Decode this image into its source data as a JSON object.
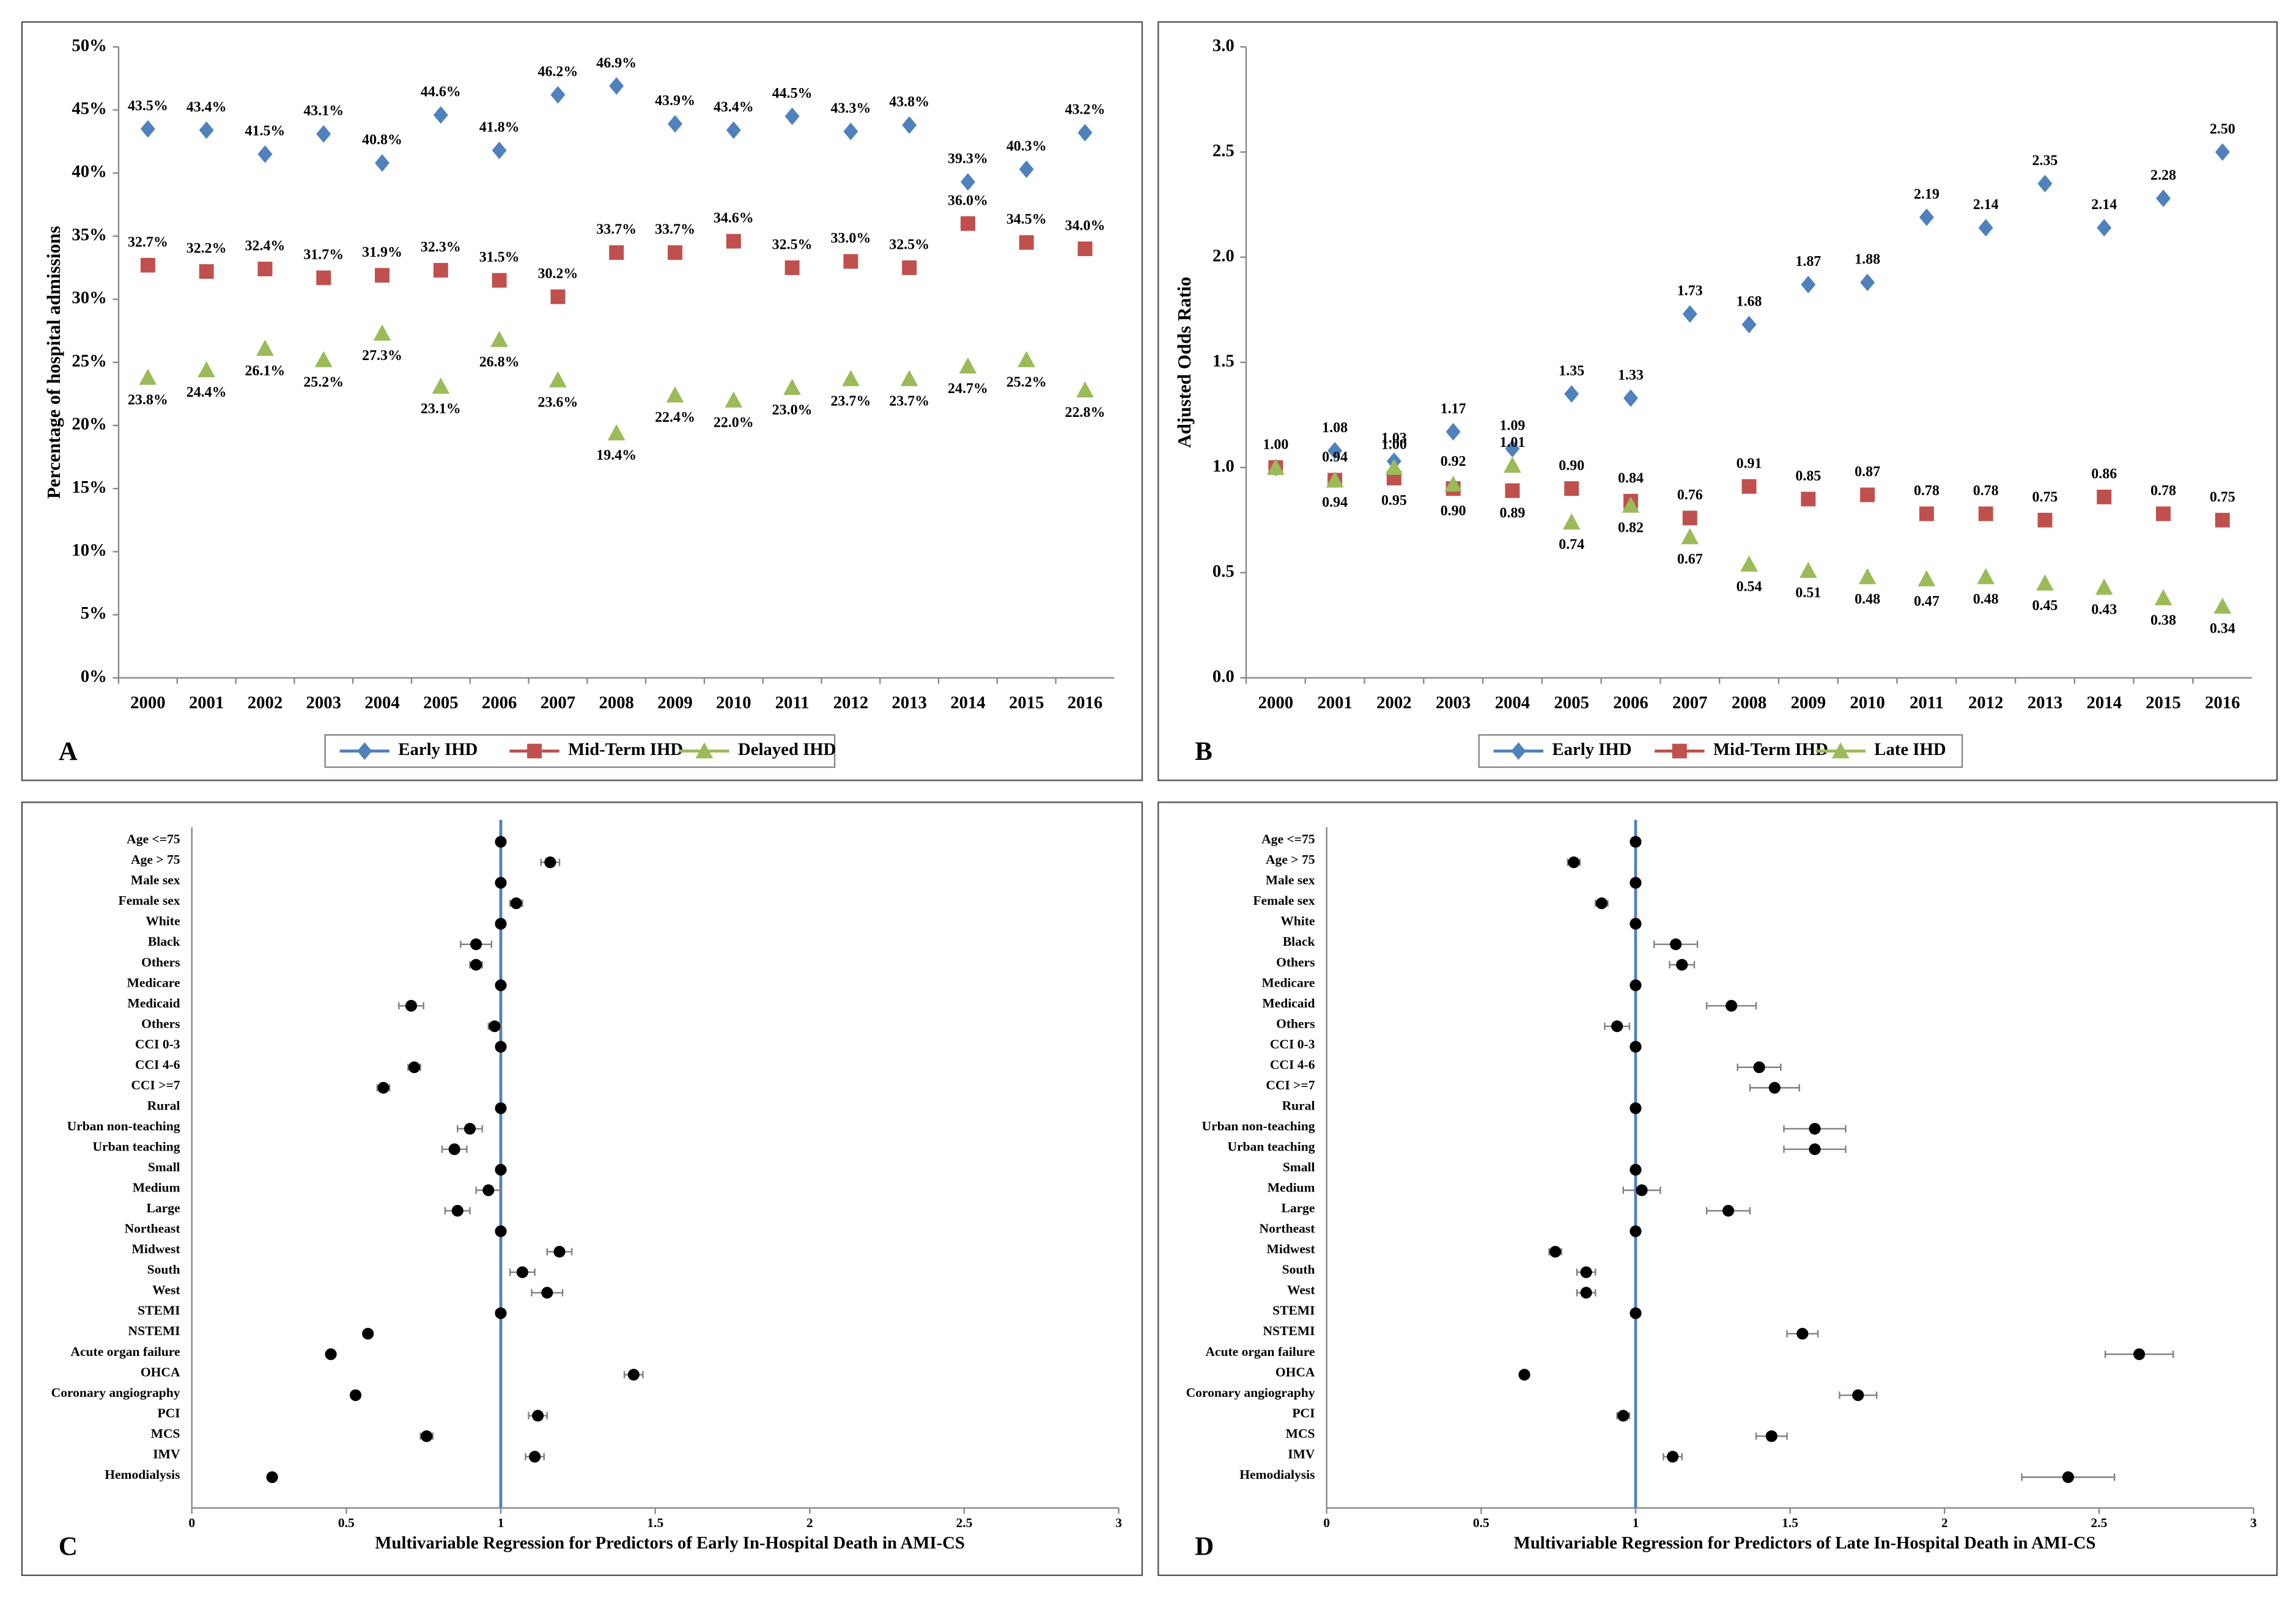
{
  "chart_data": [
    {
      "type": "line",
      "panel_label": "A",
      "ylabel": "Percentage of hospital admissions",
      "categories": [
        "2000",
        "2001",
        "2002",
        "2003",
        "2004",
        "2005",
        "2006",
        "2007",
        "2008",
        "2009",
        "2010",
        "2011",
        "2012",
        "2013",
        "2014",
        "2015",
        "2016"
      ],
      "ylim": [
        0,
        50
      ],
      "yticks": [
        {
          "value": 0,
          "label": "0%"
        },
        {
          "value": 5,
          "label": "5%"
        },
        {
          "value": 10,
          "label": "10%"
        },
        {
          "value": 15,
          "label": "15%"
        },
        {
          "value": 20,
          "label": "20%"
        },
        {
          "value": 25,
          "label": "25%"
        },
        {
          "value": 30,
          "label": "30%"
        },
        {
          "value": 35,
          "label": "35%"
        },
        {
          "value": 40,
          "label": "40%"
        },
        {
          "value": 45,
          "label": "45%"
        },
        {
          "value": 50,
          "label": "50%"
        }
      ],
      "series": [
        {
          "name": "Early IHD",
          "color": "#4f81bd",
          "marker": "diamond",
          "values": [
            43.5,
            43.4,
            41.5,
            43.1,
            40.8,
            44.6,
            41.8,
            46.2,
            46.9,
            43.9,
            43.4,
            44.5,
            43.3,
            43.8,
            39.3,
            40.3,
            43.2
          ],
          "value_labels": [
            "43.5%",
            "43.4%",
            "41.5%",
            "43.1%",
            "40.8%",
            "44.6%",
            "41.8%",
            "46.2%",
            "46.9%",
            "43.9%",
            "43.4%",
            "44.5%",
            "43.3%",
            "43.8%",
            "39.3%",
            "40.3%",
            "43.2%"
          ]
        },
        {
          "name": "Mid-Term IHD",
          "color": "#c0504d",
          "marker": "square",
          "values": [
            32.7,
            32.2,
            32.4,
            31.7,
            31.9,
            32.3,
            31.5,
            30.2,
            33.7,
            33.7,
            34.6,
            32.5,
            33.0,
            32.5,
            36.0,
            34.5,
            34.0
          ],
          "value_labels": [
            "32.7%",
            "32.2%",
            "32.4%",
            "31.7%",
            "31.9%",
            "32.3%",
            "31.5%",
            "30.2%",
            "33.7%",
            "33.7%",
            "34.6%",
            "32.5%",
            "33.0%",
            "32.5%",
            "36.0%",
            "34.5%",
            "34.0%"
          ]
        },
        {
          "name": "Delayed IHD",
          "color": "#9bbb59",
          "marker": "triangle",
          "values": [
            23.8,
            24.4,
            26.1,
            25.2,
            27.3,
            23.1,
            26.8,
            23.6,
            19.4,
            22.4,
            22.0,
            23.0,
            23.7,
            23.7,
            24.7,
            25.2,
            22.8
          ],
          "value_labels": [
            "23.8%",
            "24.4%",
            "26.1%",
            "25.2%",
            "27.3%",
            "23.1%",
            "26.8%",
            "23.6%",
            "19.4%",
            "22.4%",
            "22.0%",
            "23.0%",
            "23.7%",
            "23.7%",
            "24.7%",
            "25.2%",
            "22.8%"
          ]
        }
      ]
    },
    {
      "type": "line",
      "panel_label": "B",
      "ylabel": "Adjusted Odds Ratio",
      "categories": [
        "2000",
        "2001",
        "2002",
        "2003",
        "2004",
        "2005",
        "2006",
        "2007",
        "2008",
        "2009",
        "2010",
        "2011",
        "2012",
        "2013",
        "2014",
        "2015",
        "2016"
      ],
      "ylim": [
        0,
        3
      ],
      "yticks": [
        {
          "value": 0,
          "label": "0.0"
        },
        0.5,
        {
          "value": 1,
          "label": "1.0"
        },
        1.5,
        {
          "value": 2,
          "label": "2.0"
        },
        2.5,
        {
          "value": 3,
          "label": "3.0"
        }
      ],
      "series": [
        {
          "name": "Early IHD",
          "color": "#4f81bd",
          "marker": "diamond",
          "values": [
            1.0,
            1.08,
            1.03,
            1.17,
            1.09,
            1.35,
            1.33,
            1.73,
            1.68,
            1.87,
            1.88,
            2.19,
            2.14,
            2.35,
            2.14,
            2.28,
            2.5
          ],
          "value_labels": [
            "1.00",
            "1.08",
            "1.03",
            "1.17",
            "1.09",
            "1.35",
            "1.33",
            "1.73",
            "1.68",
            "1.87",
            "1.88",
            "2.19",
            "2.14",
            "2.35",
            "2.14",
            "2.28",
            "2.50"
          ]
        },
        {
          "name": "Mid-Term IHD",
          "color": "#c0504d",
          "marker": "square",
          "values": [
            1.0,
            0.94,
            0.95,
            0.9,
            0.89,
            0.9,
            0.84,
            0.76,
            0.91,
            0.85,
            0.87,
            0.78,
            0.78,
            0.75,
            0.86,
            0.78,
            0.75
          ],
          "value_labels": [
            null,
            "0.94",
            "0.95",
            "0.90",
            "0.89",
            "0.90",
            "0.84",
            "0.76",
            "0.91",
            "0.85",
            "0.87",
            "0.78",
            "0.78",
            "0.75",
            "0.86",
            "0.78",
            "0.75"
          ]
        },
        {
          "name": "Late IHD",
          "color": "#9bbb59",
          "marker": "triangle",
          "values": [
            1.0,
            0.94,
            1.0,
            0.92,
            1.01,
            0.74,
            0.82,
            0.67,
            0.54,
            0.51,
            0.48,
            0.47,
            0.48,
            0.45,
            0.43,
            0.38,
            0.34
          ],
          "value_labels": [
            null,
            "0.94",
            "1.00",
            "0.92",
            "1.01",
            "0.74",
            "0.82",
            "0.67",
            "0.54",
            "0.51",
            "0.48",
            "0.47",
            "0.48",
            "0.45",
            "0.43",
            "0.38",
            "0.34"
          ]
        }
      ]
    },
    {
      "type": "forest",
      "panel_label": "C",
      "xlabel": "Multivariable Regression for Predictors of Early In-Hospital Death in AMI-CS",
      "categories": [
        "Age <=75",
        "Age > 75",
        "Male sex",
        "Female sex",
        "White",
        "Black",
        "Others",
        "Medicare",
        "Medicaid",
        "Others",
        "CCI 0-3",
        "CCI 4-6",
        "CCI >=7",
        "Rural",
        "Urban non-teaching",
        "Urban teaching",
        "Small",
        "Medium",
        "Large",
        "Northeast",
        "Midwest",
        "South",
        "West",
        "STEMI",
        "NSTEMI",
        "Acute organ failure",
        "OHCA",
        "Coronary angiography",
        "PCI",
        "MCS",
        "IMV",
        "Hemodialysis"
      ],
      "values": [
        1,
        1.16,
        1,
        1.05,
        1,
        0.92,
        0.92,
        1,
        0.71,
        0.98,
        1,
        0.72,
        0.62,
        1,
        0.9,
        0.85,
        1,
        0.96,
        0.86,
        1,
        1.19,
        1.07,
        1.15,
        1,
        0.57,
        0.45,
        1.43,
        0.53,
        1.12,
        0.76,
        1.11,
        0.26
      ],
      "errors": [
        0,
        0.03,
        0,
        0.02,
        0,
        0.05,
        0.02,
        0,
        0.04,
        0.02,
        0,
        0.02,
        0.02,
        0,
        0.04,
        0.04,
        0,
        0.04,
        0.04,
        0,
        0.04,
        0.04,
        0.05,
        0,
        0.01,
        0.01,
        0.03,
        0.01,
        0.03,
        0.02,
        0.03,
        0.01
      ],
      "color": "#000000",
      "ci_color": "#808080",
      "reference_line": 1,
      "reference_color": "#4f81bd",
      "xlim": [
        0,
        3
      ],
      "xticks": [
        0,
        0.5,
        1,
        1.5,
        2,
        2.5,
        3
      ]
    },
    {
      "type": "forest",
      "panel_label": "D",
      "xlabel": "Multivariable Regression for Predictors of Late In-Hospital Death in AMI-CS",
      "categories": [
        "Age <=75",
        "Age > 75",
        "Male sex",
        "Female sex",
        "White",
        "Black",
        "Others",
        "Medicare",
        "Medicaid",
        "Others",
        "CCI 0-3",
        "CCI 4-6",
        "CCI >=7",
        "Rural",
        "Urban non-teaching",
        "Urban teaching",
        "Small",
        "Medium",
        "Large",
        "Northeast",
        "Midwest",
        "South",
        "West",
        "STEMI",
        "NSTEMI",
        "Acute organ failure",
        "OHCA",
        "Coronary angiography",
        "PCI",
        "MCS",
        "IMV",
        "Hemodialysis"
      ],
      "values": [
        1,
        0.8,
        1,
        0.89,
        1,
        1.13,
        1.15,
        1,
        1.31,
        0.94,
        1,
        1.4,
        1.45,
        1,
        1.58,
        1.58,
        1,
        1.02,
        1.3,
        1,
        0.74,
        0.84,
        0.84,
        1,
        1.54,
        2.63,
        0.64,
        1.72,
        0.96,
        1.44,
        1.12,
        2.4
      ],
      "errors": [
        0,
        0.02,
        0,
        0.02,
        0,
        0.07,
        0.04,
        0,
        0.08,
        0.04,
        0,
        0.07,
        0.08,
        0,
        0.1,
        0.1,
        0,
        0.06,
        0.07,
        0,
        0.02,
        0.03,
        0.03,
        0,
        0.05,
        0.11,
        0.01,
        0.06,
        0.02,
        0.05,
        0.03,
        0.15
      ],
      "color": "#000000",
      "ci_color": "#808080",
      "reference_line": 1,
      "reference_color": "#4f81bd",
      "xlim": [
        0,
        3
      ],
      "xticks": [
        0,
        0.5,
        1,
        1.5,
        2,
        2.5,
        3
      ]
    }
  ]
}
